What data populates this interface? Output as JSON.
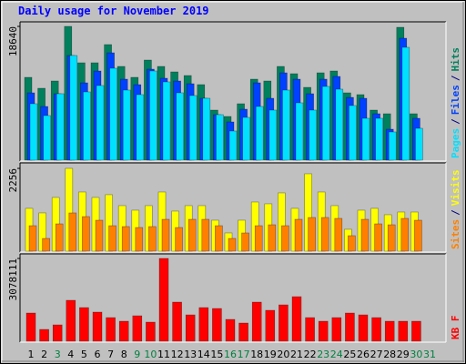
{
  "title": "Daily usage for November 2019",
  "legend_separator": "/",
  "chart_data": [
    {
      "type": "bar",
      "ylim": [
        0,
        19020
      ],
      "yticks": [
        18640
      ],
      "series": [
        {
          "name": "Hits",
          "color": "#00805C",
          "values": [
            11539,
            10017,
            11032,
            18640,
            13568,
            13568,
            16104,
            13060,
            11539,
            13948,
            13060,
            12300,
            11792,
            10524,
            6974,
            6086,
            7862,
            11285,
            11032,
            13060,
            12046,
            10144,
            12173,
            12426,
            9383,
            9130,
            6974,
            6467,
            18513,
            6467,
            null
          ]
        },
        {
          "name": "Files",
          "color": "#0040FF",
          "values": [
            9383,
            7481,
            9256,
            14582,
            10778,
            12426,
            14962,
            11285,
            10524,
            12680,
            11412,
            11032,
            10651,
            8622,
            6340,
            5326,
            7101,
            10778,
            8622,
            12173,
            11285,
            9256,
            11285,
            11666,
            8749,
            8622,
            6467,
            4311,
            16991,
            5833,
            null
          ]
        },
        {
          "name": "Pages",
          "color": "#00E0FF",
          "values": [
            7862,
            6213,
            9256,
            14582,
            9510,
            10398,
            12807,
            9764,
            9130,
            12426,
            10905,
            9383,
            9003,
            8622,
            6340,
            4058,
            5960,
            7481,
            6974,
            9764,
            7988,
            6974,
            10271,
            9890,
            7608,
            5833,
            5833,
            3931,
            15723,
            4438,
            null
          ]
        }
      ]
    },
    {
      "type": "bar",
      "ylim": [
        0,
        2356
      ],
      "yticks": [
        2256
      ],
      "series": [
        {
          "name": "Visits",
          "color": "#FFFF00",
          "values": [
            1166,
            1042,
            1463,
            2256,
            1612,
            1463,
            1538,
            1240,
            1116,
            1240,
            1612,
            1091,
            1240,
            1240,
            843,
            496,
            843,
            1339,
            1290,
            1587,
            1166,
            2108,
            1612,
            1240,
            595,
            1116,
            1166,
            992,
            1066,
            1066,
            null
          ]
        },
        {
          "name": "Sites",
          "color": "#FF8000",
          "values": [
            694,
            347,
            744,
            1042,
            942,
            843,
            694,
            670,
            645,
            670,
            868,
            645,
            868,
            868,
            694,
            347,
            496,
            694,
            719,
            694,
            868,
            918,
            918,
            893,
            422,
            868,
            744,
            719,
            893,
            843,
            null
          ]
        }
      ]
    },
    {
      "type": "bar",
      "ylim": [
        0,
        3179550
      ],
      "yticks": [
        3078111
      ],
      "categories": [
        "1",
        "2",
        "3",
        "4",
        "5",
        "6",
        "7",
        "8",
        "9",
        "10",
        "11",
        "12",
        "13",
        "14",
        "15",
        "16",
        "17",
        "18",
        "19",
        "20",
        "21",
        "22",
        "23",
        "24",
        "25",
        "26",
        "27",
        "28",
        "29",
        "30",
        "31"
      ],
      "category_colors": [
        "#000000",
        "#000000",
        "#008040",
        "#000000",
        "#000000",
        "#000000",
        "#000000",
        "#000000",
        "#008040",
        "#008040",
        "#000000",
        "#000000",
        "#000000",
        "#000000",
        "#000000",
        "#008040",
        "#008040",
        "#000000",
        "#000000",
        "#000000",
        "#000000",
        "#000000",
        "#008040",
        "#008040",
        "#000000",
        "#000000",
        "#000000",
        "#000000",
        "#000000",
        "#008040",
        "#008040"
      ],
      "series": [
        {
          "name": "KB F",
          "color": "#FF0000",
          "values": [
            1048575,
            439725,
            608850,
            1522125,
            1251525,
            1082400,
            879450,
            744150,
            947100,
            710325,
            3078111,
            1454475,
            980925,
            1251525,
            1217700,
            811800,
            676500,
            1454475,
            1150050,
            1353000,
            1657425,
            879450,
            744150,
            879450,
            1048575,
            980925,
            879450,
            744150,
            744150,
            744150,
            null
          ]
        }
      ]
    }
  ]
}
